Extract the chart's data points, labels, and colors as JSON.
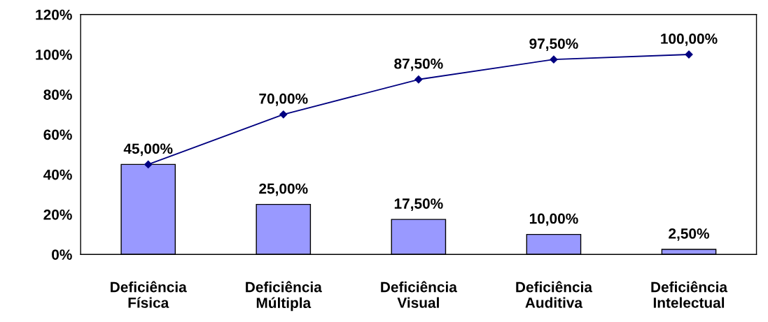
{
  "chart_data": {
    "type": "bar",
    "categories": [
      "Deficiência\nFísica",
      "Deficiência\nMúltipla",
      "Deficiência\nVisual",
      "Deficiência\nAuditiva",
      "Deficiência\nIntelectual"
    ],
    "series": [
      {
        "color": "#9999ff",
        "values": [
          45,
          25,
          17.5,
          10,
          2.5
        ],
        "value_labels": [
          null,
          "25,00%",
          "17,50%",
          "10,00%",
          "2,50%"
        ]
      },
      {
        "type": "line",
        "color": "#000080",
        "values": [
          45,
          70,
          87.5,
          97.5,
          100
        ],
        "value_labels": [
          "45,00%",
          "70,00%",
          "87,50%",
          "97,50%",
          "100,00%"
        ],
        "marker": "diamond",
        "line_style": "solid"
      }
    ],
    "ylim": [
      0,
      120
    ],
    "yticks": [
      {
        "value": 0,
        "label": "0%"
      },
      {
        "value": 20,
        "label": "20%"
      },
      {
        "value": 40,
        "label": "40%"
      },
      {
        "value": 60,
        "label": "60%"
      },
      {
        "value": 80,
        "label": "80%"
      },
      {
        "value": 100,
        "label": "100%"
      },
      {
        "value": 120,
        "label": "120%"
      }
    ],
    "grid": false,
    "legend": false
  }
}
